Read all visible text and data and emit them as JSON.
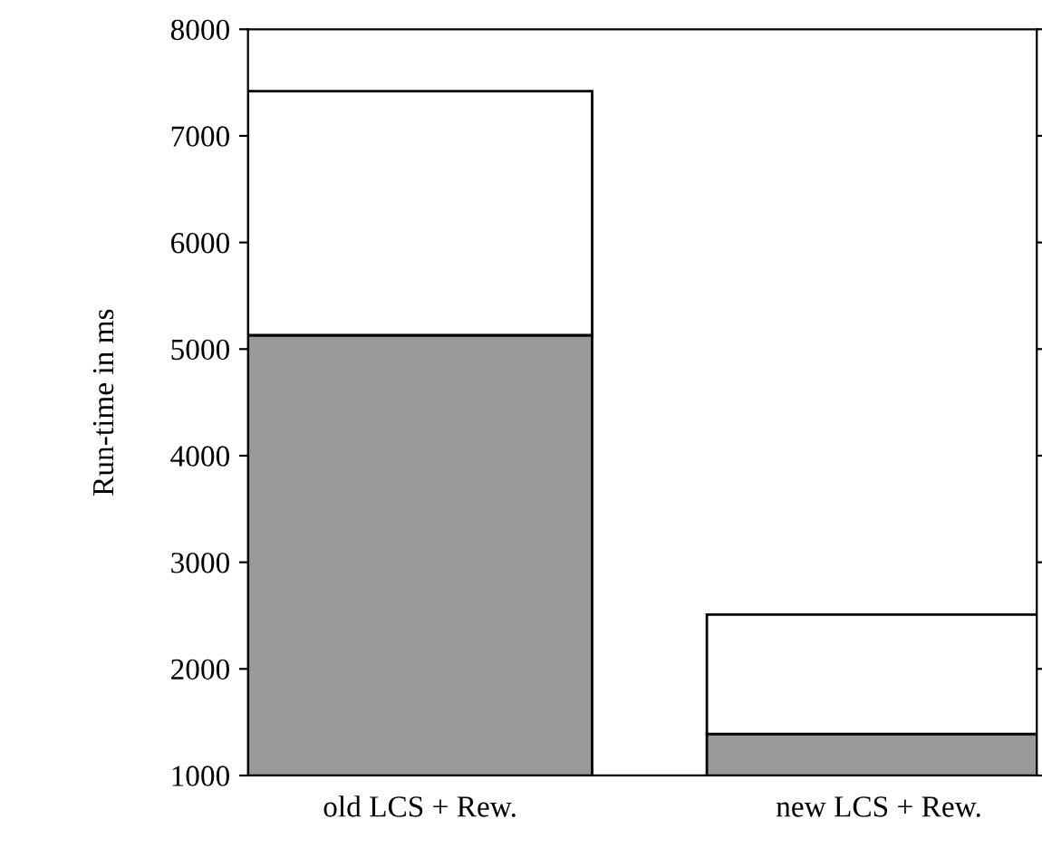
{
  "chart_data": {
    "type": "bar",
    "stacked": true,
    "ylabel": "Run-time in ms",
    "categories": [
      "old LCS + Rew.",
      "new LCS + Rew."
    ],
    "series": [
      {
        "color": "#999999",
        "values": [
          5130,
          1390
        ]
      },
      {
        "color": "#ffffff",
        "values": [
          2290,
          1120
        ]
      }
    ],
    "ylim": [
      1000,
      8000
    ],
    "yticks": [
      1000,
      2000,
      3000,
      4000,
      5000,
      6000,
      7000,
      8000
    ],
    "grid": false,
    "legend": false
  }
}
